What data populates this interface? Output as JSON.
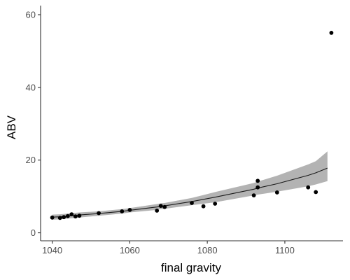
{
  "chart_data": {
    "type": "scatter",
    "title": "",
    "xlabel": "final gravity",
    "ylabel": "ABV",
    "xlim": [
      1037,
      1115
    ],
    "ylim": [
      -2.2,
      62.5
    ],
    "x_ticks": [
      1040,
      1060,
      1080,
      1100
    ],
    "y_ticks": [
      0,
      20,
      40,
      60
    ],
    "grid": false,
    "legend": "none",
    "colors": {
      "points": "#000000",
      "line": "#1a1a1a",
      "band": "#b3b3b3",
      "axis": "#333333"
    },
    "series": [
      {
        "type": "scatter",
        "x": [
          1040,
          1042,
          1043,
          1044,
          1045,
          1046,
          1047,
          1052,
          1058,
          1060,
          1067,
          1068,
          1069,
          1076,
          1079,
          1082,
          1092,
          1093,
          1093,
          1098,
          1106,
          1108,
          1112
        ],
        "y": [
          4.2,
          4.1,
          4.3,
          4.6,
          5.1,
          4.5,
          4.7,
          5.4,
          5.9,
          6.3,
          6.1,
          7.4,
          7.1,
          8.2,
          7.3,
          8.0,
          10.3,
          14.3,
          12.5,
          11.1,
          12.5,
          11.2,
          55.0
        ]
      },
      {
        "type": "line",
        "x": [
          1040,
          1042,
          1043,
          1044,
          1045,
          1046,
          1047,
          1052,
          1058,
          1060,
          1067,
          1068,
          1069,
          1076,
          1079,
          1082,
          1092,
          1093,
          1098,
          1106,
          1108,
          1111
        ],
        "y": [
          4.3,
          4.4,
          4.5,
          4.6,
          4.7,
          4.8,
          4.9,
          5.3,
          5.9,
          6.2,
          7.1,
          7.3,
          7.4,
          8.6,
          9.2,
          9.8,
          12.0,
          12.3,
          13.5,
          15.8,
          16.5,
          17.8
        ]
      }
    ],
    "confidence_band": {
      "x": [
        1040,
        1042,
        1043,
        1044,
        1045,
        1046,
        1047,
        1052,
        1058,
        1060,
        1067,
        1068,
        1069,
        1076,
        1079,
        1082,
        1092,
        1093,
        1098,
        1106,
        1108,
        1111
      ],
      "lower": [
        3.6,
        3.7,
        3.8,
        3.9,
        4.0,
        4.1,
        4.2,
        4.7,
        5.3,
        5.6,
        6.3,
        6.5,
        6.6,
        7.6,
        8.0,
        8.4,
        10.3,
        10.5,
        11.3,
        12.8,
        13.3,
        14.2
      ],
      "upper": [
        5.0,
        5.1,
        5.2,
        5.3,
        5.4,
        5.5,
        5.6,
        5.9,
        6.5,
        6.8,
        7.9,
        8.1,
        8.2,
        9.6,
        10.4,
        11.2,
        13.7,
        14.1,
        15.7,
        18.8,
        19.7,
        22.4
      ]
    }
  }
}
